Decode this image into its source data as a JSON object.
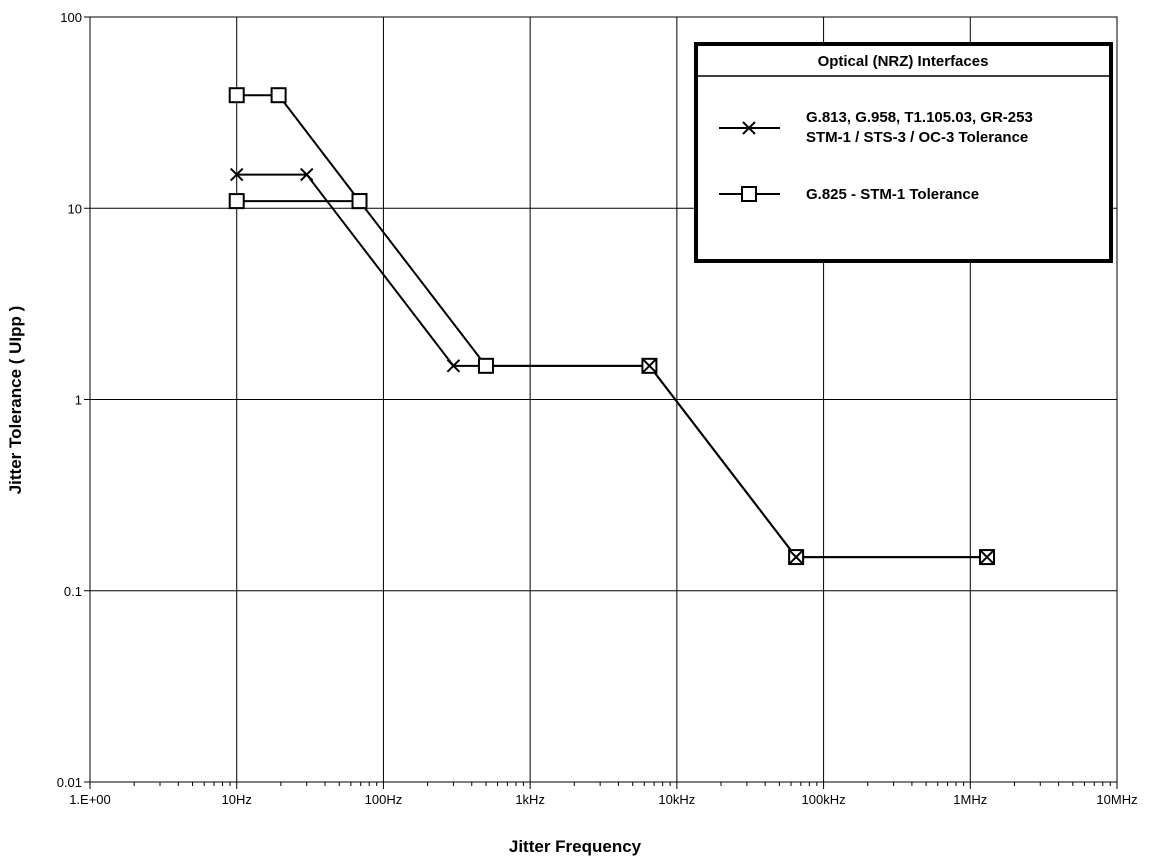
{
  "chart_data": {
    "type": "line",
    "xlabel": "Jitter Frequency",
    "ylabel": "Jitter Tolerance ( UIpp )",
    "x_scale": "log",
    "y_scale": "log",
    "xlim": [
      1,
      10000000
    ],
    "ylim": [
      0.01,
      100
    ],
    "x_ticks": [
      {
        "value": 1,
        "label": "1.E+00"
      },
      {
        "value": 10,
        "label": "10Hz"
      },
      {
        "value": 100,
        "label": "100Hz"
      },
      {
        "value": 1000,
        "label": "1kHz"
      },
      {
        "value": 10000,
        "label": "10kHz"
      },
      {
        "value": 100000,
        "label": "100kHz"
      },
      {
        "value": 1000000,
        "label": "1MHz"
      },
      {
        "value": 10000000,
        "label": "10MHz"
      }
    ],
    "y_ticks": [
      {
        "value": 0.01,
        "label": "0.01"
      },
      {
        "value": 0.1,
        "label": "0.1"
      },
      {
        "value": 1,
        "label": "1"
      },
      {
        "value": 10,
        "label": "10"
      },
      {
        "value": 100,
        "label": "100"
      }
    ],
    "grid": true,
    "legend": {
      "title": "Optical (NRZ) Interfaces",
      "placement": "top-right"
    },
    "series": [
      {
        "name": "G.813, G.958, T1.105.03, GR-253 STM-1 / STS-3 / OC-3 Tolerance",
        "name_lines": [
          "G.813, G.958, T1.105.03, GR-253",
          "STM-1 / STS-3 / OC-3 Tolerance"
        ],
        "marker": "x",
        "x": [
          10,
          30,
          300,
          6500,
          65000,
          1300000
        ],
        "y": [
          15,
          15,
          1.5,
          1.5,
          0.15,
          0.15
        ]
      },
      {
        "name": "G.825 - STM-1 Tolerance",
        "name_lines": [
          "G.825 - STM-1 Tolerance"
        ],
        "marker": "square",
        "x": [
          10,
          19.3,
          68.7,
          500,
          6500,
          65000,
          1300000
        ],
        "y": [
          39,
          39,
          10.9,
          1.5,
          1.5,
          0.15,
          0.15
        ],
        "extra": {
          "x": [
            10,
            68.7
          ],
          "y": [
            10.9,
            10.9
          ]
        }
      }
    ]
  }
}
